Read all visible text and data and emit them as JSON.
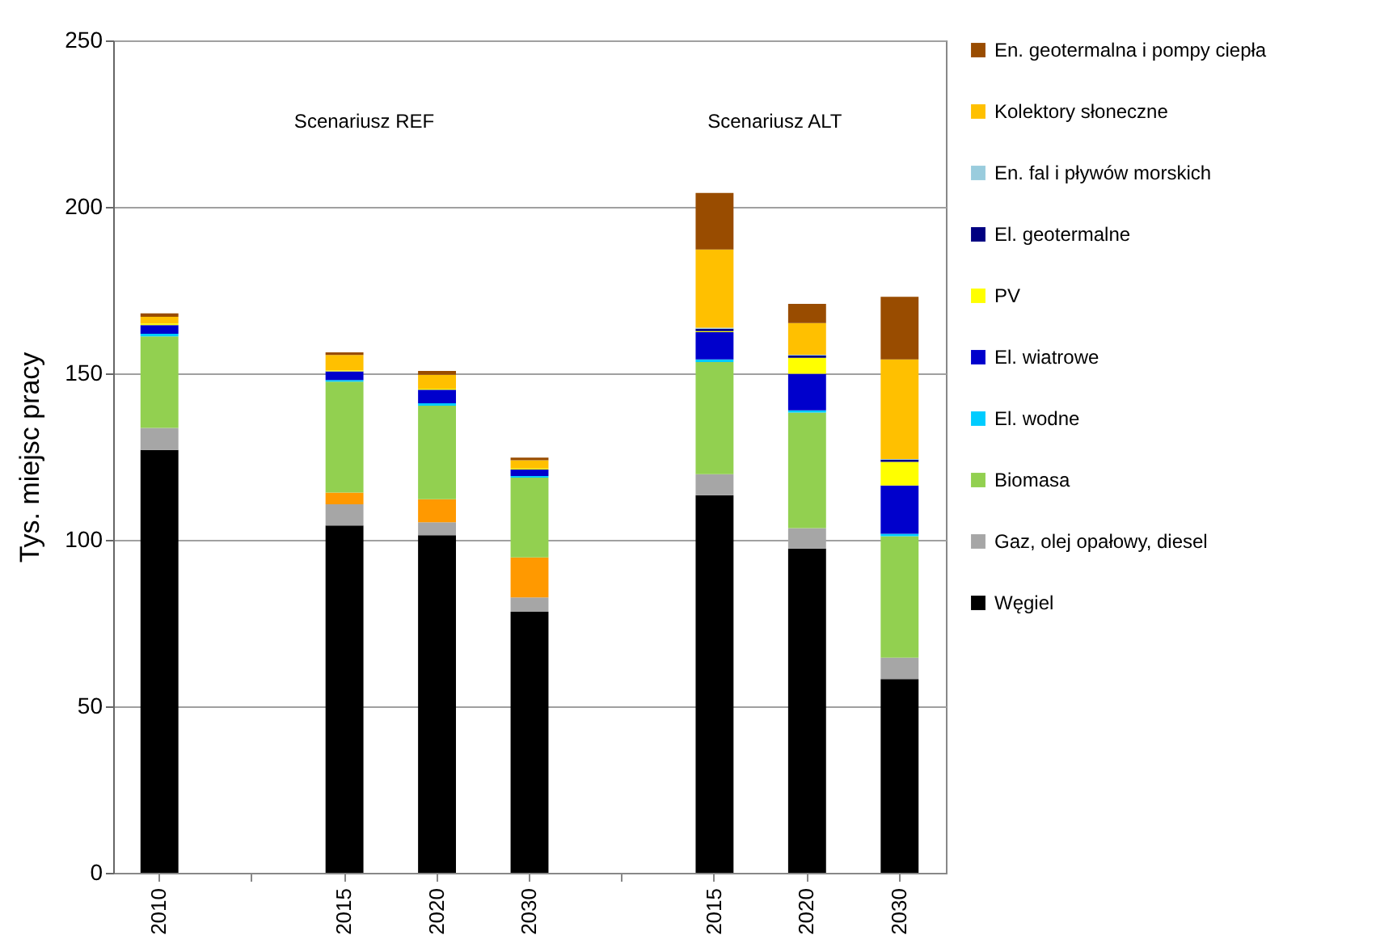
{
  "chart_data": {
    "type": "bar",
    "stacked": true,
    "ylabel": "Tys. miejsc pracy",
    "categories": [
      "2010",
      null,
      "2015",
      "2020",
      "2030",
      null,
      "2015",
      "2020",
      "2030"
    ],
    "series": [
      {
        "name": "Węgiel",
        "color": "#000000",
        "values": [
          127,
          null,
          104.3,
          101.4,
          78.4,
          null,
          113.4,
          97.4,
          58.2
        ]
      },
      {
        "name": "Gaz, olej opałowy, diesel",
        "color": "#a6a6a6",
        "values": [
          6.6,
          null,
          6.4,
          3.9,
          4.3,
          null,
          6.3,
          6.1,
          6.4
        ]
      },
      {
        "color": "#ff9900",
        "values": [
          null,
          null,
          3.5,
          6.9,
          12,
          null,
          null,
          null,
          null
        ]
      },
      {
        "name": "Biomasa",
        "color": "#92d050",
        "values": [
          27.5,
          null,
          33.3,
          28.1,
          24,
          null,
          33.7,
          34.7,
          36.5
        ]
      },
      {
        "name": "El. wodne",
        "color": "#00ccff",
        "values": [
          0.8,
          null,
          0.5,
          0.7,
          0.5,
          null,
          0.8,
          0.7,
          0.7
        ]
      },
      {
        "name": "El. wiatrowe",
        "color": "#0000cc",
        "values": [
          2.6,
          null,
          2.6,
          4.1,
          1.9,
          null,
          8.2,
          11,
          14.5
        ]
      },
      {
        "name": "PV",
        "color": "#ffff00",
        "values": [
          0.5,
          null,
          0.3,
          0.3,
          0.3,
          null,
          0.3,
          4.8,
          7.1
        ]
      },
      {
        "name": "El. geotermalne",
        "color": "#000080",
        "values": [
          null,
          null,
          null,
          null,
          null,
          null,
          0.7,
          0.7,
          0.7
        ]
      },
      {
        "name": "En. fal i pływów morskich",
        "color": "#99ccdd",
        "values": [
          null,
          null,
          null,
          null,
          null,
          null,
          0.3,
          0.2,
          0.2
        ]
      },
      {
        "name": "Kolektory słoneczne",
        "color": "#ffc000",
        "values": [
          2,
          null,
          4.6,
          4.2,
          2.5,
          null,
          23.5,
          9.5,
          29.9
        ]
      },
      {
        "name": "En. geotermalna i pompy ciepła",
        "color": "#994c00",
        "values": [
          1,
          null,
          0.8,
          1.1,
          0.8,
          null,
          17,
          5.8,
          18.8
        ]
      }
    ],
    "ylim": [
      0,
      250
    ],
    "yticks": [
      0,
      50,
      100,
      150,
      200,
      250
    ],
    "grid": "y",
    "legend": "right",
    "annotations": [
      "Scenariusz REF",
      "Scenariusz ALT"
    ]
  }
}
